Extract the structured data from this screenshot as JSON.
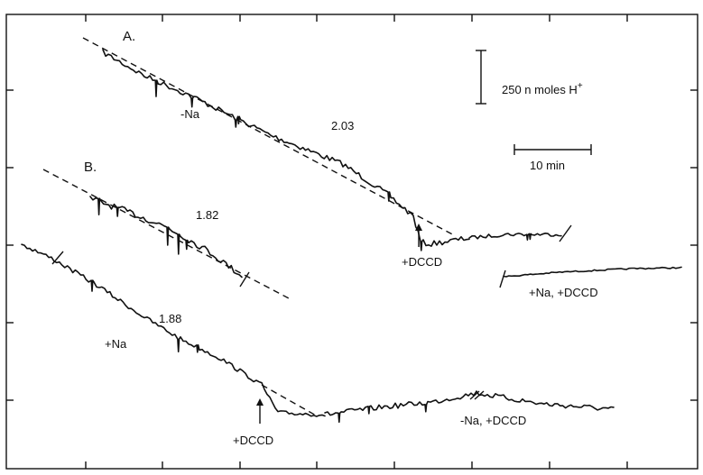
{
  "chart_data": {
    "type": "line",
    "title": "",
    "xlabel": "",
    "ylabel": "",
    "grid": false,
    "legend": "none",
    "panels": [
      {
        "label": "A."
      },
      {
        "label": "B."
      }
    ],
    "slopes": [
      "2.03",
      "1.82",
      "1.88"
    ],
    "annotations": {
      "minus_na": "-Na",
      "plus_na": "+Na",
      "dccd_a": "+DCCD",
      "dccd_b": "+DCCD",
      "na_dccd": "+Na, +DCCD",
      "minus_na_dccd": "-Na, +DCCD"
    },
    "scale_bars": {
      "vertical_label": "250 n moles H",
      "vertical_sup": "+",
      "horizontal_label": "10 min"
    },
    "colors": {
      "ink": "#111111",
      "background": "#ffffff"
    }
  }
}
